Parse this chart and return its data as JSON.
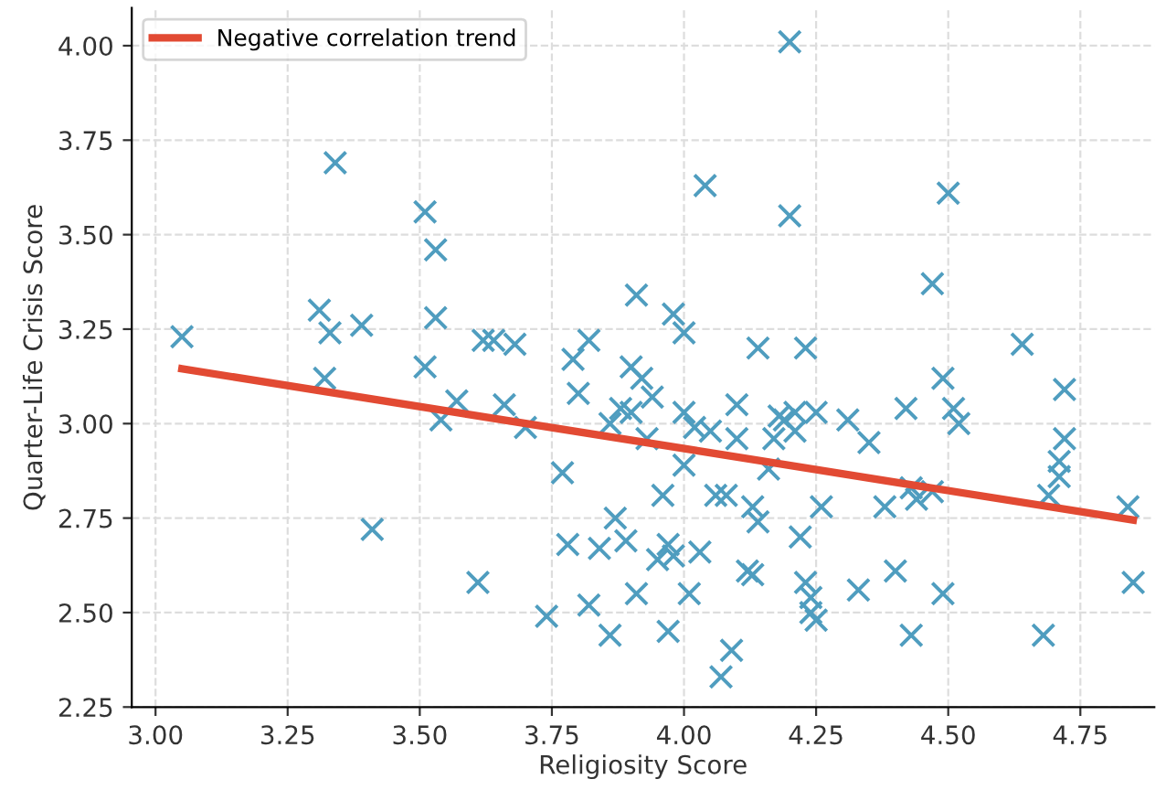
{
  "chart_data": {
    "type": "scatter",
    "xlabel": "Religiosity Score",
    "ylabel": "Quarter-Life Crisis Score",
    "xlim": [
      2.955,
      4.89
    ],
    "ylim": [
      2.25,
      4.1
    ],
    "xticks": [
      {
        "value": 3.0,
        "label": "3.00"
      },
      {
        "value": 3.25,
        "label": "3.25"
      },
      {
        "value": 3.5,
        "label": "3.50"
      },
      {
        "value": 3.75,
        "label": "3.75"
      },
      {
        "value": 4.0,
        "label": "4.00"
      },
      {
        "value": 4.25,
        "label": "4.25"
      },
      {
        "value": 4.5,
        "label": "4.50"
      },
      {
        "value": 4.75,
        "label": "4.75"
      }
    ],
    "yticks": [
      {
        "value": 2.25,
        "label": "2.25"
      },
      {
        "value": 2.5,
        "label": "2.50"
      },
      {
        "value": 2.75,
        "label": "2.75"
      },
      {
        "value": 3.0,
        "label": "3.00"
      },
      {
        "value": 3.25,
        "label": "3.25"
      },
      {
        "value": 3.5,
        "label": "3.50"
      },
      {
        "value": 3.75,
        "label": "3.75"
      },
      {
        "value": 4.0,
        "label": "4.00"
      }
    ],
    "grid": true,
    "legend": "top left",
    "series": [
      {
        "marker": "cross",
        "color": "#4f9dbf",
        "x": [
          3.05,
          3.31,
          3.32,
          3.33,
          3.34,
          3.39,
          3.41,
          3.51,
          3.51,
          3.53,
          3.53,
          3.54,
          3.57,
          3.61,
          3.62,
          3.64,
          3.66,
          3.68,
          3.7,
          3.74,
          3.77,
          3.78,
          3.79,
          3.8,
          3.82,
          3.82,
          3.84,
          3.86,
          3.86,
          3.87,
          3.88,
          3.89,
          3.9,
          3.9,
          3.91,
          3.91,
          3.92,
          3.93,
          3.94,
          3.95,
          3.96,
          3.97,
          3.97,
          3.98,
          3.98,
          4.0,
          4.0,
          4.0,
          4.01,
          4.02,
          4.03,
          4.04,
          4.05,
          4.06,
          4.07,
          4.08,
          4.09,
          4.1,
          4.1,
          4.12,
          4.13,
          4.13,
          4.14,
          4.14,
          4.16,
          4.17,
          4.18,
          4.19,
          4.2,
          4.2,
          4.21,
          4.21,
          4.22,
          4.23,
          4.23,
          4.24,
          4.24,
          4.25,
          4.25,
          4.26,
          4.31,
          4.33,
          4.35,
          4.38,
          4.4,
          4.42,
          4.43,
          4.43,
          4.44,
          4.47,
          4.47,
          4.49,
          4.49,
          4.5,
          4.51,
          4.52,
          4.64,
          4.68,
          4.69,
          4.71,
          4.71,
          4.72,
          4.72,
          4.84,
          4.85
        ],
        "values": [
          3.23,
          3.3,
          3.12,
          3.24,
          3.69,
          3.26,
          2.72,
          3.56,
          3.15,
          3.46,
          3.28,
          3.01,
          3.06,
          2.58,
          3.22,
          3.22,
          3.05,
          3.21,
          2.99,
          2.49,
          2.87,
          2.68,
          3.17,
          3.08,
          3.22,
          2.52,
          2.67,
          2.44,
          3.0,
          2.75,
          3.04,
          2.69,
          3.03,
          3.15,
          3.34,
          2.55,
          3.12,
          2.96,
          3.07,
          2.64,
          2.81,
          2.68,
          2.45,
          2.65,
          3.29,
          3.24,
          3.03,
          2.89,
          2.55,
          2.99,
          2.66,
          3.63,
          2.98,
          2.81,
          2.33,
          2.81,
          2.4,
          2.96,
          3.05,
          2.61,
          2.6,
          2.78,
          2.74,
          3.2,
          2.88,
          2.96,
          3.02,
          3.01,
          3.55,
          4.01,
          2.98,
          3.03,
          2.7,
          3.2,
          2.58,
          2.54,
          2.5,
          2.48,
          3.03,
          2.78,
          3.01,
          2.56,
          2.95,
          2.78,
          2.61,
          3.04,
          2.83,
          2.44,
          2.8,
          2.82,
          3.37,
          2.55,
          3.12,
          3.61,
          3.04,
          3.0,
          3.21,
          2.44,
          2.81,
          2.86,
          2.9,
          2.96,
          3.09,
          2.78,
          2.58
        ]
      },
      {
        "type": "line",
        "name": "Negative correlation trend",
        "color": "#e24a33",
        "line_style": "solid",
        "x": [
          3.05,
          4.85
        ],
        "values": [
          3.145,
          2.745
        ]
      }
    ]
  }
}
